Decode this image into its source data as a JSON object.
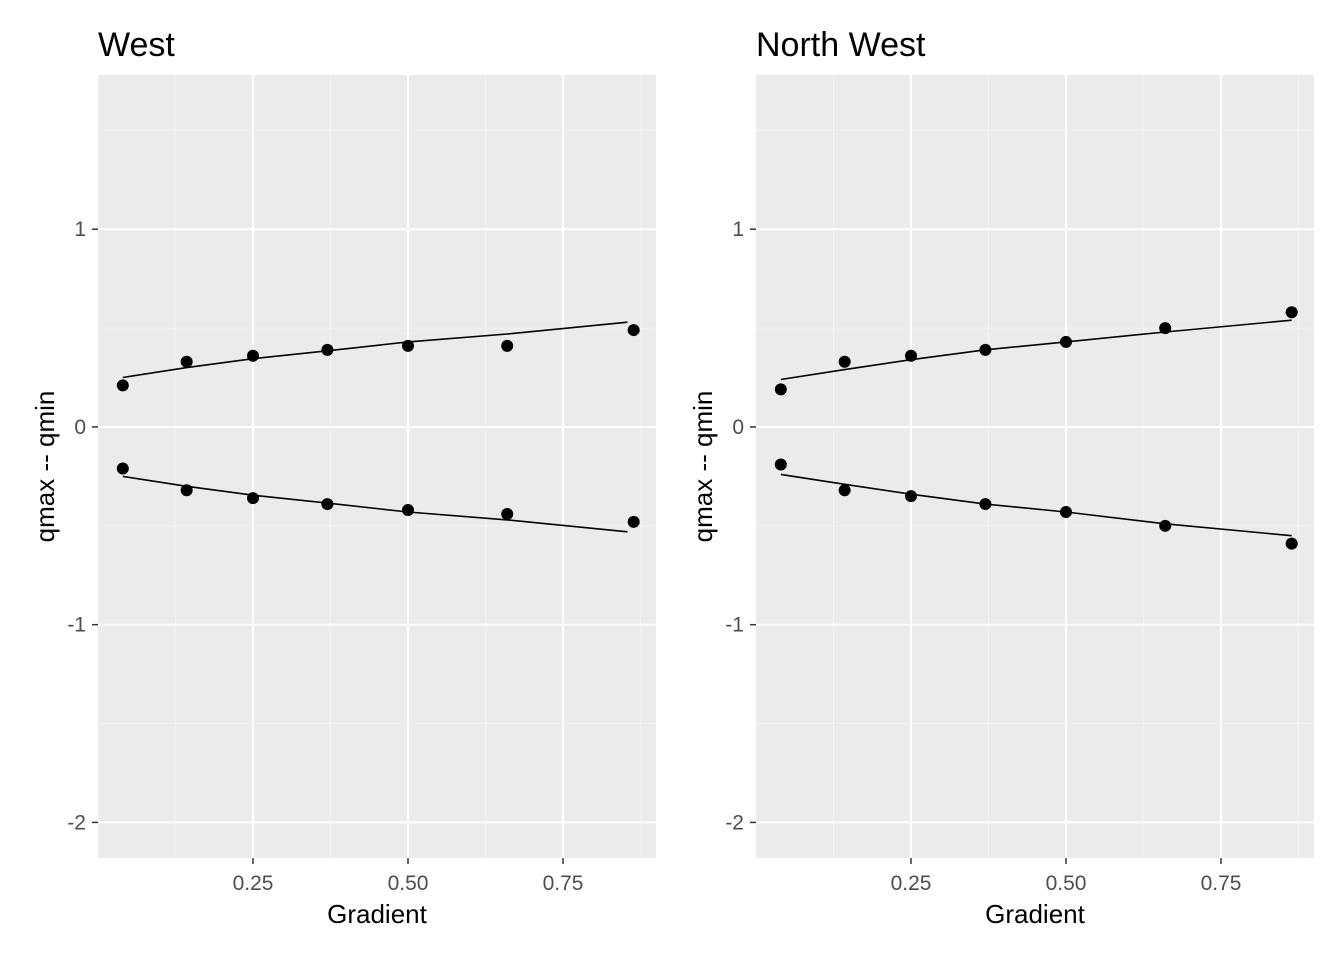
{
  "chart_data": [
    {
      "type": "scatter",
      "title": "West",
      "xlabel": "Gradient",
      "ylabel": "qmax -- qmin",
      "xlim": [
        0.0,
        0.9
      ],
      "ylim": [
        -2.18,
        1.78
      ],
      "x_ticks": [
        0.25,
        0.5,
        0.75
      ],
      "x_tick_labels": [
        "0.25",
        "0.50",
        "0.75"
      ],
      "y_ticks": [
        -2,
        -1,
        0,
        1
      ],
      "y_tick_labels": [
        "-2",
        "-1",
        "0",
        "1"
      ],
      "grid": true,
      "series": [
        {
          "x": [
            0.04,
            0.143,
            0.25,
            0.37,
            0.5,
            0.66,
            0.864
          ],
          "y": [
            0.21,
            0.33,
            0.36,
            0.39,
            0.41,
            0.41,
            0.49
          ]
        },
        {
          "x": [
            0.04,
            0.143,
            0.25,
            0.37,
            0.5,
            0.66,
            0.864
          ],
          "y": [
            -0.21,
            -0.32,
            -0.36,
            -0.39,
            -0.42,
            -0.44,
            -0.48
          ]
        }
      ],
      "fit_lines": [
        {
          "x": [
            0.04,
            0.143,
            0.25,
            0.37,
            0.5,
            0.66,
            0.854
          ],
          "y": [
            0.25,
            0.3,
            0.345,
            0.385,
            0.43,
            0.47,
            0.53
          ]
        },
        {
          "x": [
            0.04,
            0.143,
            0.25,
            0.37,
            0.5,
            0.66,
            0.854
          ],
          "y": [
            -0.25,
            -0.3,
            -0.345,
            -0.385,
            -0.43,
            -0.47,
            -0.53
          ]
        }
      ]
    },
    {
      "type": "scatter",
      "title": "North West",
      "xlabel": "Gradient",
      "ylabel": "qmax -- qmin",
      "xlim": [
        0.0,
        0.9
      ],
      "ylim": [
        -2.18,
        1.78
      ],
      "x_ticks": [
        0.25,
        0.5,
        0.75
      ],
      "x_tick_labels": [
        "0.25",
        "0.50",
        "0.75"
      ],
      "y_ticks": [
        -2,
        -1,
        0,
        1
      ],
      "y_tick_labels": [
        "-2",
        "-1",
        "0",
        "1"
      ],
      "grid": true,
      "series": [
        {
          "x": [
            0.04,
            0.143,
            0.25,
            0.37,
            0.5,
            0.66,
            0.864
          ],
          "y": [
            0.19,
            0.33,
            0.36,
            0.39,
            0.43,
            0.5,
            0.58
          ]
        },
        {
          "x": [
            0.04,
            0.143,
            0.25,
            0.37,
            0.5,
            0.66,
            0.864
          ],
          "y": [
            -0.19,
            -0.32,
            -0.35,
            -0.39,
            -0.43,
            -0.5,
            -0.59
          ]
        }
      ],
      "fit_lines": [
        {
          "x": [
            0.04,
            0.143,
            0.25,
            0.37,
            0.5,
            0.66,
            0.864
          ],
          "y": [
            0.24,
            0.29,
            0.34,
            0.39,
            0.43,
            0.48,
            0.54
          ]
        },
        {
          "x": [
            0.04,
            0.143,
            0.25,
            0.37,
            0.5,
            0.66,
            0.864
          ],
          "y": [
            -0.24,
            -0.29,
            -0.34,
            -0.39,
            -0.43,
            -0.49,
            -0.55
          ]
        }
      ]
    }
  ],
  "colors": {
    "panel_background": "#ebebeb",
    "grid_major": "#ffffff",
    "grid_minor": "#f4f4f4",
    "points": "#000000",
    "fit_line": "#000000",
    "tick_text": "#4d4d4d"
  }
}
